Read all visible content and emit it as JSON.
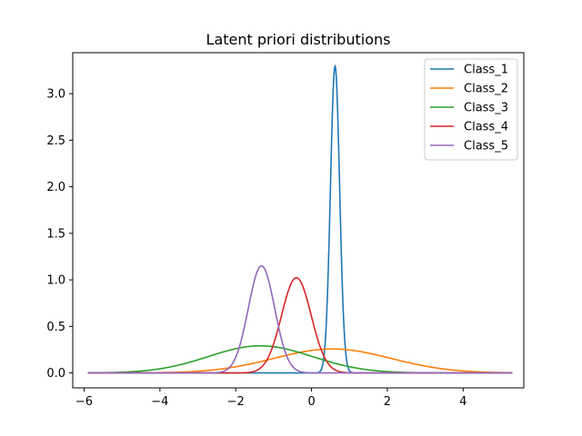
{
  "chart_data": {
    "type": "line",
    "title": "Latent priori distributions",
    "xlabel": "",
    "ylabel": "",
    "xlim": [
      -6.3,
      5.6
    ],
    "ylim": [
      -0.16,
      3.44
    ],
    "x_range": [
      -5.9,
      5.3
    ],
    "xticks": [
      -6,
      -4,
      -2,
      0,
      2,
      4
    ],
    "yticks": [
      0.0,
      0.5,
      1.0,
      1.5,
      2.0,
      2.5,
      3.0
    ],
    "grid": false,
    "legend_position": "top-right",
    "series": [
      {
        "name": "Class_1",
        "color": "#1f77b4",
        "mu": 0.62,
        "sigma": 0.121
      },
      {
        "name": "Class_2",
        "color": "#ff7f0e",
        "mu": 0.55,
        "sigma": 1.55
      },
      {
        "name": "Class_3",
        "color": "#2ca02c",
        "mu": -1.35,
        "sigma": 1.37
      },
      {
        "name": "Class_4",
        "color": "#d62728",
        "mu": -0.4,
        "sigma": 0.39
      },
      {
        "name": "Class_5",
        "color": "#9467bd",
        "mu": -1.32,
        "sigma": 0.347
      }
    ]
  }
}
